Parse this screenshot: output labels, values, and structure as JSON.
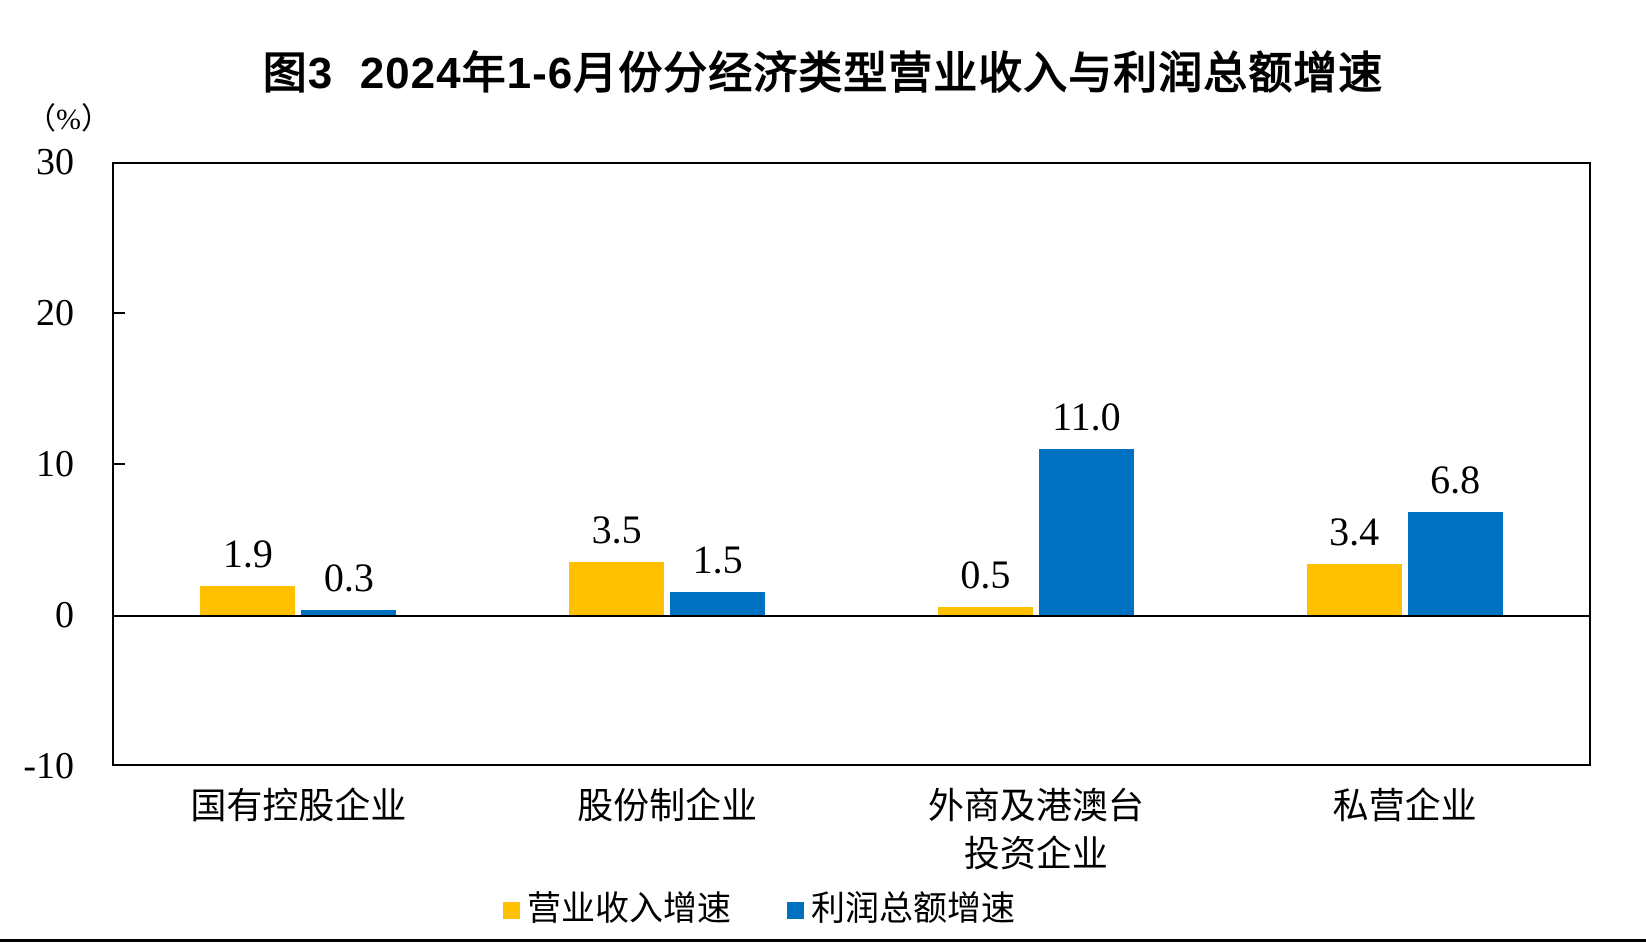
{
  "chart_data": {
    "type": "bar",
    "title": "图3  2024年1-6月份分经济类型营业收入与利润总额增速",
    "ylabel": "（%）",
    "xlabel": "",
    "categories": [
      "国有控股企业",
      "股份制企业",
      "外商及港澳台\n投资企业",
      "私营企业"
    ],
    "series": [
      {
        "name": "营业收入增速",
        "color": "#FFC000",
        "values": [
          1.9,
          3.5,
          0.5,
          3.4
        ]
      },
      {
        "name": "利润总额增速",
        "color": "#0070C0",
        "values": [
          0.3,
          1.5,
          11.0,
          6.8
        ]
      }
    ],
    "ylim": [
      -10,
      30
    ],
    "yticks": [
      30,
      20,
      10,
      0,
      -10
    ],
    "grid": false,
    "legend_position": "bottom",
    "value_labels": true,
    "value_label_decimals": 1,
    "axis_color": "#000000",
    "text_color": "#000000"
  }
}
